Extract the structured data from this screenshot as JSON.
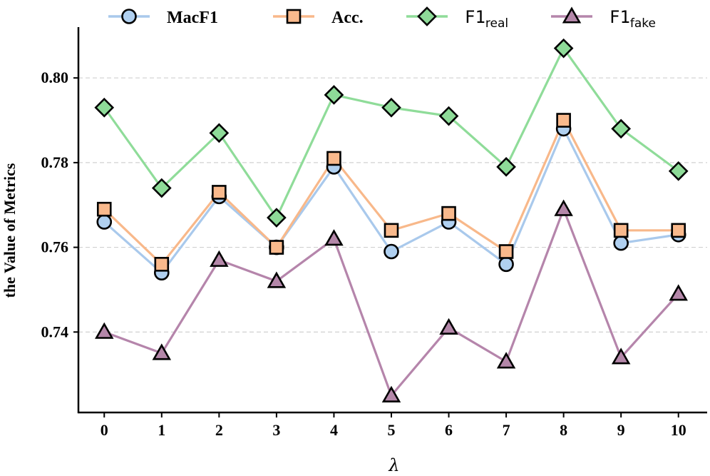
{
  "chart_data": {
    "type": "line",
    "title": "",
    "xlabel": "λ",
    "ylabel": "the Value of Metrics",
    "x": [
      0,
      1,
      2,
      3,
      4,
      5,
      6,
      7,
      8,
      9,
      10
    ],
    "x_tick_labels": [
      "0",
      "1",
      "2",
      "3",
      "4",
      "5",
      "6",
      "7",
      "8",
      "9",
      "10"
    ],
    "y_ticks": [
      0.74,
      0.76,
      0.78,
      0.8
    ],
    "y_tick_labels": [
      "0.74",
      "0.76",
      "0.78",
      "0.80"
    ],
    "ylim": [
      0.721,
      0.812
    ],
    "xlim": [
      -0.45,
      10.5
    ],
    "grid": "horizontal dashed",
    "legend_placement": "top",
    "series": [
      {
        "name": "MacF1",
        "name_main": "MacF1",
        "name_sub": "",
        "font": "serif",
        "marker": "circle",
        "line_color": "#a9c9ec",
        "marker_fill": "#b0d0f0",
        "values": [
          0.766,
          0.754,
          0.772,
          0.76,
          0.779,
          0.759,
          0.766,
          0.756,
          0.788,
          0.761,
          0.763
        ]
      },
      {
        "name": "Acc.",
        "name_main": "Acc.",
        "name_sub": "",
        "font": "serif",
        "marker": "square",
        "line_color": "#f8b88a",
        "marker_fill": "#f9b98c",
        "values": [
          0.769,
          0.756,
          0.773,
          0.76,
          0.781,
          0.764,
          0.768,
          0.759,
          0.79,
          0.764,
          0.764
        ]
      },
      {
        "name": "F1real",
        "name_main": "F1",
        "name_sub": "real",
        "font": "mono",
        "marker": "diamond",
        "line_color": "#8fdc99",
        "marker_fill": "#8edb98",
        "values": [
          0.793,
          0.774,
          0.787,
          0.767,
          0.796,
          0.793,
          0.791,
          0.779,
          0.807,
          0.788,
          0.778
        ]
      },
      {
        "name": "F1fake",
        "name_main": "F1",
        "name_sub": "fake",
        "font": "mono",
        "marker": "triangle",
        "line_color": "#b585ab",
        "marker_fill": "#b487a9",
        "values": [
          0.74,
          0.735,
          0.757,
          0.752,
          0.762,
          0.725,
          0.741,
          0.733,
          0.769,
          0.734,
          0.749
        ]
      }
    ]
  }
}
